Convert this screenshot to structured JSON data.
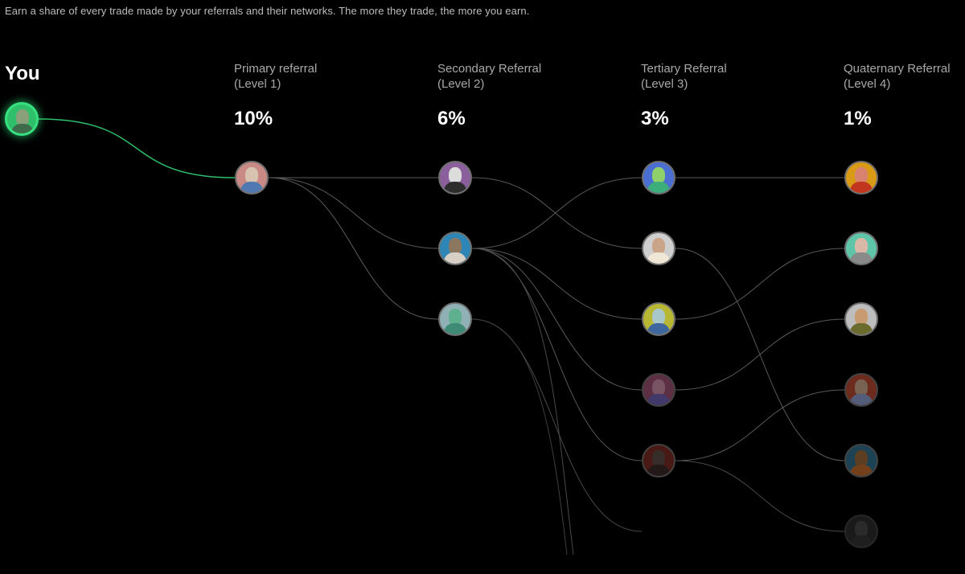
{
  "intro_text": "Earn a share of every trade made by your referrals and their networks. The more they trade, the more you earn.",
  "you_label": "You",
  "levels": [
    {
      "name": "Primary referral",
      "sub": "(Level 1)",
      "pct": "10%"
    },
    {
      "name": "Secondary Referral",
      "sub": "(Level 2)",
      "pct": "6%"
    },
    {
      "name": "Tertiary Referral",
      "sub": "(Level 3)",
      "pct": "3%"
    },
    {
      "name": "Quaternary Referral",
      "sub": "(Level 4)",
      "pct": "1%"
    }
  ],
  "colors": {
    "accent": "#36e07f",
    "link": "#5a5a5a",
    "avatars": {
      "you": {
        "bg": "#2fbf6a",
        "face": "#8aa07a",
        "body": "#3e6b4a"
      },
      "l1a": {
        "bg": "#c98a86",
        "face": "#d7c3b0",
        "body": "#4f79b0"
      },
      "l2a": {
        "bg": "#8b5f9c",
        "face": "#dcdcdc",
        "body": "#2d2d2d"
      },
      "l2b": {
        "bg": "#2e86b6",
        "face": "#8b7760",
        "body": "#d8d0c4"
      },
      "l2c": {
        "bg": "#8fb1b5",
        "face": "#5fb08f",
        "body": "#3f8a75"
      },
      "l3a": {
        "bg": "#4a6ed1",
        "face": "#8fd06a",
        "body": "#3cae7a"
      },
      "l3b": {
        "bg": "#cfcfcf",
        "face": "#c9a488",
        "body": "#efe6d6"
      },
      "l3c": {
        "bg": "#b8b734",
        "face": "#a9c7c9",
        "body": "#3e67a0"
      },
      "l3d": {
        "bg": "#9c4f6f",
        "face": "#c98aa3",
        "body": "#6d5fb0"
      },
      "l3e": {
        "bg": "#7a2a24",
        "face": "#5a4a44",
        "body": "#3a2a28"
      },
      "l4a": {
        "bg": "#d99a16",
        "face": "#d88270",
        "body": "#c2361f"
      },
      "l4b": {
        "bg": "#5fc5a8",
        "face": "#d9b8a8",
        "body": "#8a8a8a"
      },
      "l4c": {
        "bg": "#bdbdbd",
        "face": "#c99b70",
        "body": "#6b6b2e"
      },
      "l4d": {
        "bg": "#b5492f",
        "face": "#c9a488",
        "body": "#8a9ac9"
      },
      "l4e": {
        "bg": "#2f6f8a",
        "face": "#9a6a3a",
        "body": "#c26a2e"
      },
      "l4f": {
        "bg": "#4a4a4a",
        "face": "#7a7a7a",
        "body": "#5a5a5a"
      }
    }
  }
}
